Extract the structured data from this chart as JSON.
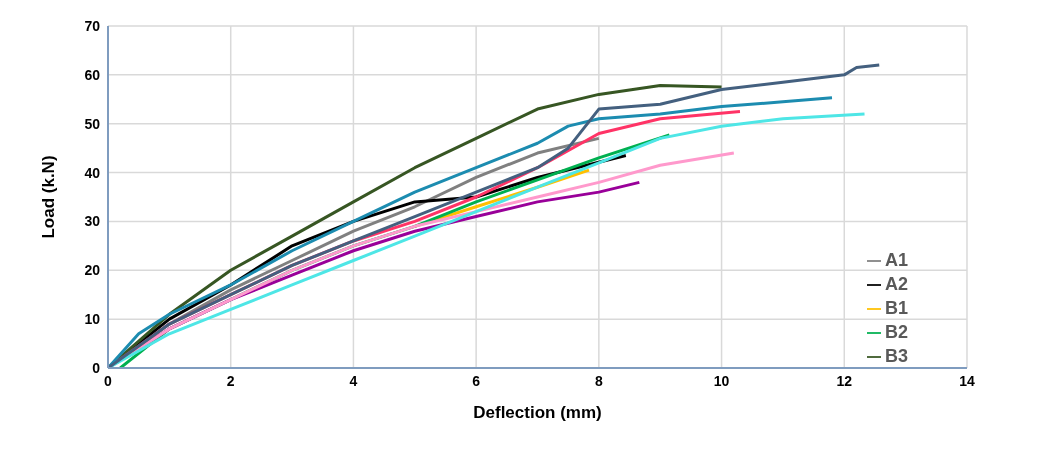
{
  "chart_data": {
    "type": "line",
    "xlabel": "Deflection (mm)",
    "ylabel": "Load (k.N)",
    "xlim": [
      0,
      14
    ],
    "xticks": [
      0,
      2,
      4,
      6,
      8,
      10,
      12,
      14
    ],
    "ylim": [
      0,
      70
    ],
    "yticks": [
      0,
      10,
      20,
      30,
      40,
      50,
      60,
      70
    ],
    "grid": true,
    "legend": "bottom right",
    "marker": "none",
    "series": [
      {
        "name": "A1",
        "color": "#808080",
        "x": [
          0,
          1,
          2,
          3,
          4,
          5,
          6,
          7,
          8
        ],
        "values": [
          0,
          9,
          16,
          22,
          28,
          33,
          39,
          44,
          47
        ]
      },
      {
        "name": "A2",
        "color": "#000000",
        "x": [
          0,
          1,
          2,
          3,
          4,
          5,
          6,
          7,
          8.44
        ],
        "values": [
          0,
          10,
          17,
          25,
          30,
          34,
          35,
          39,
          43.5
        ]
      },
      {
        "name": "B1",
        "color": "#ffc000",
        "x": [
          5,
          6,
          7,
          7.84
        ],
        "values": [
          29,
          33,
          37,
          40.5
        ]
      },
      {
        "name": "B2",
        "color": "#00b050",
        "x": [
          0.2,
          1,
          2,
          3,
          4,
          5,
          6,
          7,
          8,
          9.15
        ],
        "values": [
          0,
          8,
          14,
          20,
          25,
          29,
          34,
          38.5,
          43,
          47.7
        ]
      },
      {
        "name": "B3",
        "color": "#375623",
        "x": [
          0,
          1,
          2,
          3,
          4,
          5,
          6,
          7,
          8,
          9,
          10
        ],
        "values": [
          0,
          11,
          20,
          27,
          34,
          41,
          47,
          53,
          56,
          57.8,
          57.5
        ]
      },
      {
        "color": "#990099",
        "x": [
          0,
          1,
          2,
          3,
          4,
          5,
          6,
          7,
          8,
          8.66
        ],
        "values": [
          0,
          8,
          14,
          19,
          24,
          28,
          31,
          34,
          36,
          38
        ]
      },
      {
        "color": "#ff99cc",
        "x": [
          0,
          1,
          2,
          3,
          4,
          5,
          6,
          7,
          8,
          9,
          10.2
        ],
        "values": [
          0,
          8,
          14,
          20,
          25,
          29,
          32,
          35,
          38,
          41.5,
          44
        ]
      },
      {
        "color": "#ff3366",
        "x": [
          0,
          1,
          2,
          3,
          4,
          5,
          6,
          7,
          8,
          9,
          10.3
        ],
        "values": [
          0,
          9,
          15,
          21,
          26,
          30,
          35,
          41,
          48,
          51,
          52.5
        ]
      },
      {
        "color": "#4ee6e6",
        "x": [
          0,
          1,
          2,
          3,
          4,
          5,
          6,
          7,
          8,
          9,
          10,
          11,
          12.33
        ],
        "values": [
          0,
          7,
          12,
          17,
          22,
          27,
          32,
          37,
          42,
          47,
          49.5,
          51,
          52
        ]
      },
      {
        "color": "#1c8cb0",
        "x": [
          0,
          0.5,
          1,
          2,
          3,
          4,
          5,
          6,
          7,
          7.5,
          8,
          9,
          10,
          11,
          11.8
        ],
        "values": [
          0,
          7,
          11,
          17,
          24,
          30,
          36,
          41,
          46,
          49.5,
          51,
          52,
          53.5,
          54.5,
          55.3
        ]
      },
      {
        "color": "#44607f",
        "x": [
          0,
          1,
          2,
          3,
          4,
          5,
          6,
          7,
          7.5,
          8,
          9,
          10,
          11,
          12,
          12.2,
          12.57
        ],
        "values": [
          0,
          9,
          15,
          21,
          26,
          31,
          36,
          41,
          45,
          53,
          54,
          57,
          58.5,
          60,
          61.5,
          62
        ]
      }
    ]
  }
}
